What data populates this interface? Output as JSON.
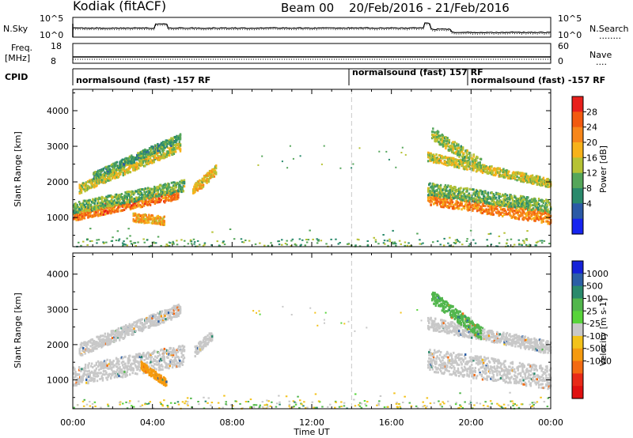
{
  "header": {
    "station": "Kodiak (fitACF)",
    "beam": "Beam 00",
    "date_range": "20/Feb/2016 - 21/Feb/2016"
  },
  "panels": {
    "nsky": {
      "left_label": "N.Sky",
      "left_ticks": [
        "10^5",
        "10^0"
      ],
      "right_ticks": [
        "10^5",
        "10^0"
      ],
      "right_label": "N.Search",
      "right_legend": "........"
    },
    "freq": {
      "left_label": "Freq.",
      "left_unit": "[MHz]",
      "left_ticks": [
        "18",
        "8"
      ],
      "right_ticks": [
        "60",
        "0"
      ],
      "right_label": "Nave",
      "right_legend": "...."
    },
    "cpid": {
      "label": "CPID",
      "segments": [
        {
          "start_hr": 0,
          "end_hr": 14.0,
          "text": "normalsound (fast) -157 RF"
        },
        {
          "start_hr": 14.0,
          "end_hr": 20.0,
          "text": "normalsound (fast) 157 RF"
        },
        {
          "start_hr": 20.0,
          "end_hr": 24.0,
          "text": "normalsound (fast) -157 RF"
        }
      ]
    }
  },
  "colorbars": {
    "power": {
      "label": "Power [dB]",
      "ticks": [
        "28",
        "24",
        "20",
        "16",
        "12",
        "8",
        "4"
      ],
      "colors": [
        "#e8201c",
        "#f25a10",
        "#f7861a",
        "#f7b21a",
        "#b6c234",
        "#55a65a",
        "#2a8a6c",
        "#2b5aa6",
        "#1624f0"
      ]
    },
    "velocity": {
      "label": "Velocity [m s-1]",
      "ticks": [
        "1000",
        "500",
        "100",
        "25",
        "-25",
        "-100",
        "-500",
        "-1000"
      ],
      "colors": [
        "#1522d8",
        "#2c5fa6",
        "#2a8a6c",
        "#52b64c",
        "#58d43a",
        "#c8c8c8",
        "#f3c21a",
        "#f59a0f",
        "#f36a12",
        "#e82a18",
        "#e01010"
      ]
    }
  },
  "chart_data": {
    "type": "heatmap",
    "title": "Kodiak (fitACF) Beam 00 20/Feb/2016 - 21/Feb/2016",
    "xlabel": "Time UT",
    "ylabel": "Slant Range [km]",
    "x_ticks": [
      "00:00",
      "04:00",
      "08:00",
      "12:00",
      "16:00",
      "20:00",
      "00:00"
    ],
    "y_ticks": [
      "1000",
      "2000",
      "3000",
      "4000"
    ],
    "xlim_hr": [
      0,
      24
    ],
    "ylim_km": [
      180,
      4600
    ],
    "markers_hr": [
      14.0,
      20.0
    ],
    "power_bands": [
      {
        "start_hr": 0.0,
        "end_hr": 5.3,
        "center_start_km": 1050,
        "center_end_km": 1650,
        "width_km": 180,
        "level": 24
      },
      {
        "start_hr": 0.0,
        "end_hr": 5.6,
        "center_start_km": 1250,
        "center_end_km": 1900,
        "width_km": 200,
        "level": 12
      },
      {
        "start_hr": 0.3,
        "end_hr": 5.4,
        "center_start_km": 1800,
        "center_end_km": 3000,
        "width_km": 160,
        "level": 16
      },
      {
        "start_hr": 1.0,
        "end_hr": 5.4,
        "center_start_km": 2150,
        "center_end_km": 3250,
        "width_km": 140,
        "level": 10
      },
      {
        "start_hr": 6.0,
        "end_hr": 7.2,
        "center_start_km": 1750,
        "center_end_km": 2350,
        "width_km": 180,
        "level": 18
      },
      {
        "start_hr": 17.8,
        "end_hr": 24.0,
        "center_start_km": 1550,
        "center_end_km": 1000,
        "width_km": 240,
        "level": 23
      },
      {
        "start_hr": 17.8,
        "end_hr": 24.0,
        "center_start_km": 1800,
        "center_end_km": 1300,
        "width_km": 220,
        "level": 12
      },
      {
        "start_hr": 17.8,
        "end_hr": 24.0,
        "center_start_km": 2700,
        "center_end_km": 1950,
        "width_km": 150,
        "level": 16
      },
      {
        "start_hr": 18.0,
        "end_hr": 20.5,
        "center_start_km": 3350,
        "center_end_km": 2450,
        "width_km": 220,
        "level": 14
      },
      {
        "start_hr": 3.0,
        "end_hr": 4.6,
        "center_start_km": 1000,
        "center_end_km": 900,
        "width_km": 150,
        "level": 20
      }
    ],
    "velocity_bands": [
      {
        "start_hr": 0.0,
        "end_hr": 5.6,
        "center_start_km": 1100,
        "center_end_km": 1700,
        "width_km": 360,
        "level": 0
      },
      {
        "start_hr": 0.3,
        "end_hr": 5.4,
        "center_start_km": 1850,
        "center_end_km": 3000,
        "width_km": 220,
        "level": 0
      },
      {
        "start_hr": 6.1,
        "end_hr": 7.0,
        "center_start_km": 1800,
        "center_end_km": 2300,
        "width_km": 180,
        "level": 0
      },
      {
        "start_hr": 3.4,
        "end_hr": 4.7,
        "center_start_km": 1400,
        "center_end_km": 900,
        "width_km": 140,
        "level": -150
      },
      {
        "start_hr": 17.8,
        "end_hr": 24.0,
        "center_start_km": 1550,
        "center_end_km": 1050,
        "width_km": 400,
        "level": 0
      },
      {
        "start_hr": 17.8,
        "end_hr": 24.0,
        "center_start_km": 2600,
        "center_end_km": 1900,
        "width_km": 220,
        "level": 0
      },
      {
        "start_hr": 18.0,
        "end_hr": 20.5,
        "center_start_km": 3350,
        "center_end_km": 2300,
        "width_km": 220,
        "level": 60
      }
    ],
    "ground_scatter_km": 400
  }
}
